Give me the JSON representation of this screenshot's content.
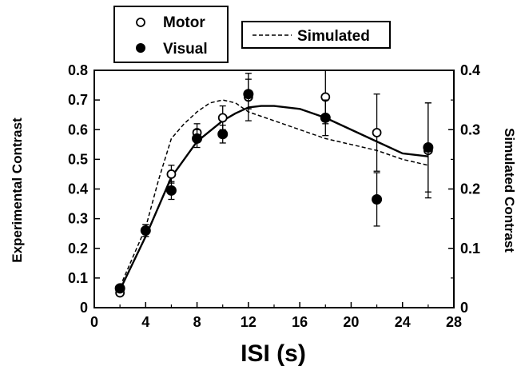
{
  "chart_data": {
    "type": "line",
    "xlabel": "ISI (s)",
    "ylabel_left": "Experimental Contrast",
    "ylabel_right": "Simulated Contrast",
    "xlim": [
      0,
      28
    ],
    "ylim_left": [
      0,
      0.8
    ],
    "ylim_right": [
      0,
      0.4
    ],
    "x_ticks": [
      "0",
      "4",
      "8",
      "12",
      "16",
      "20",
      "24",
      "28"
    ],
    "y_ticks_left": [
      "0",
      "0.1",
      "0.2",
      "0.3",
      "0.4",
      "0.5",
      "0.6",
      "0.7",
      "0.8"
    ],
    "y_ticks_right": [
      "0",
      "0.1",
      "0.2",
      "0.3",
      "0.4"
    ],
    "grid": false,
    "series": [
      {
        "name": "Motor",
        "marker": "open-circle",
        "axis": "left",
        "x": [
          2,
          4,
          6,
          8,
          10,
          12,
          18,
          22,
          26
        ],
        "y": [
          0.05,
          0.26,
          0.45,
          0.59,
          0.64,
          0.71,
          0.71,
          0.59,
          0.53
        ],
        "error": [
          0.01,
          0.02,
          0.03,
          0.03,
          0.04,
          0.08,
          0.09,
          0.13,
          0.16
        ]
      },
      {
        "name": "Visual",
        "marker": "filled-circle",
        "axis": "left",
        "x": [
          2,
          4,
          6,
          8,
          10,
          12,
          18,
          22,
          26
        ],
        "y": [
          0.065,
          0.26,
          0.395,
          0.57,
          0.585,
          0.72,
          0.64,
          0.365,
          0.54
        ],
        "error": [
          0.01,
          0.02,
          0.03,
          0.03,
          0.03,
          0.05,
          0.06,
          0.09,
          0.15
        ]
      },
      {
        "name": "",
        "style": "solid",
        "axis": "left",
        "x": [
          2,
          4,
          6,
          8,
          10,
          11,
          12,
          13,
          14,
          16,
          18,
          20,
          22,
          24,
          26
        ],
        "y": [
          0.06,
          0.24,
          0.44,
          0.56,
          0.63,
          0.655,
          0.675,
          0.68,
          0.68,
          0.67,
          0.64,
          0.6,
          0.56,
          0.52,
          0.51
        ]
      },
      {
        "name": "Simulated",
        "style": "dashed",
        "axis": "right",
        "x": [
          2,
          4,
          5,
          6,
          7,
          8,
          9,
          10,
          11,
          12,
          14,
          16,
          18,
          20,
          22,
          24,
          26
        ],
        "y": [
          0.035,
          0.135,
          0.215,
          0.285,
          0.31,
          0.33,
          0.345,
          0.35,
          0.345,
          0.33,
          0.315,
          0.3,
          0.285,
          0.275,
          0.265,
          0.25,
          0.24
        ]
      }
    ],
    "legend": {
      "markers_box": [
        "Motor",
        "Visual"
      ],
      "line_box": "Simulated"
    }
  }
}
